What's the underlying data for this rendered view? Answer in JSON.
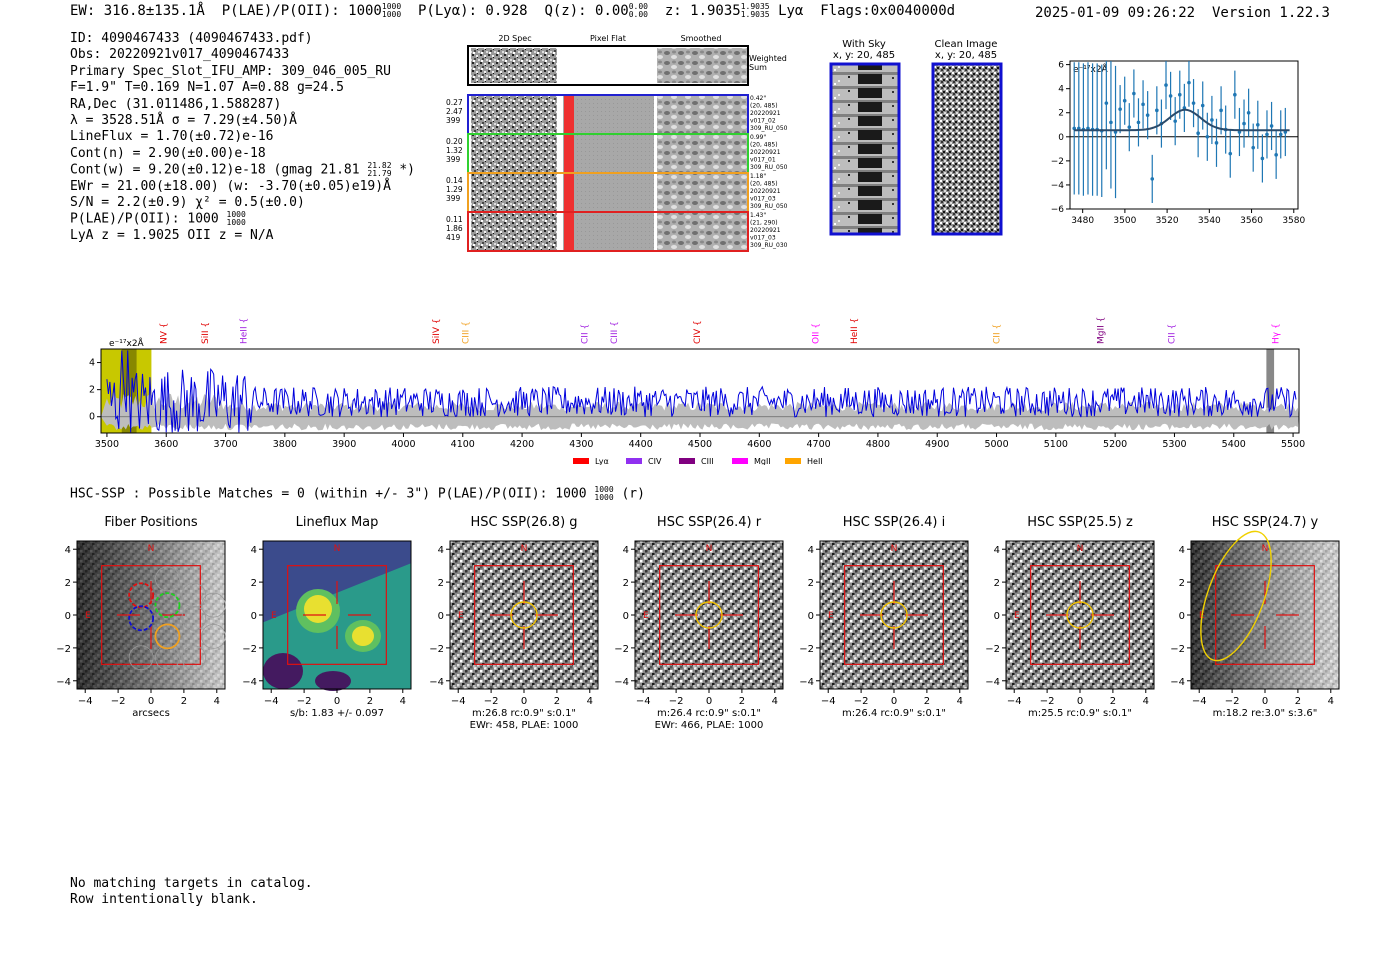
{
  "header": {
    "ew": "EW: 316.8±135.1Å",
    "plae_label": "P(LAE)/P(OII): 1000",
    "plae_hi": "1000",
    "plae_lo": "1000",
    "plya": "P(Lyα): 0.928",
    "qz": "Q(z): 0.00",
    "qz_hi": "0.00",
    "qz_lo": "0.00",
    "z": "z: 1.9035",
    "z_hi": "1.9035",
    "z_lo": "1.9035",
    "line": "Lyα",
    "flags": "Flags:0x0040000d",
    "datetime": "2025-01-09 09:26:22",
    "version": "Version 1.22.3"
  },
  "info": {
    "id": "ID: 4090467433 (4090467433.pdf)",
    "obs": "Obs: 20220921v017_4090467433",
    "primary": "Primary Spec_Slot_IFU_AMP: 309_046_005_RU",
    "params": "F=1.9\"  T=0.169  N=1.07  A=0.88  g=24.5",
    "radec": "RA,Dec (31.011486,1.588287)",
    "lambda": "λ = 3528.51Å   σ = 7.29(±4.50)Å",
    "lineflux": "LineFlux = 1.70(±0.72)e-16",
    "contn": "Cont(n) = 2.90(±0.00)e-18",
    "contw": "Cont(w) = 9.20(±0.12)e-18 (gmag 21.81",
    "contw_hi": "21.82",
    "contw_lo": "21.79",
    "contw_end": "*)",
    "ewr": "EWr = 21.00(±18.00) (w: -3.70(±0.05)e19)Å",
    "sn": "S/N = 2.2(±0.9)  χ² = 0.5(±0.0)",
    "plae": "P(LAE)/P(OII): 1000",
    "plae_hi": "1000",
    "plae_lo": "1000",
    "lyaz": "LyA z = 1.9025  OII z = N/A"
  },
  "cutouts": {
    "col_2d": "2D Spec",
    "col_flat": "Pixel Flat",
    "col_smooth": "Smoothed",
    "weighted": [
      "Weighted",
      "Sum"
    ],
    "rows": [
      {
        "color": "#2020d0",
        "left": [
          "0.27",
          "2.47",
          "399"
        ],
        "right": [
          "0.42\"",
          "(20, 485)",
          "20220921",
          "v017_02",
          "309_RU_050"
        ]
      },
      {
        "color": "#30d030",
        "left": [
          "0.20",
          "1.32",
          "399"
        ],
        "right": [
          "0.99\"",
          "(20, 485)",
          "20220921",
          "v017_01",
          "309_RU_050"
        ]
      },
      {
        "color": "#f0a020",
        "left": [
          "0.14",
          "1.29",
          "399"
        ],
        "right": [
          "1.18\"",
          "(20, 485)",
          "20220921",
          "v017_03",
          "309_RU_050"
        ]
      },
      {
        "color": "#e02020",
        "left": [
          "0.11",
          "1.86",
          "419"
        ],
        "right": [
          "1.43\"",
          "(21, 290)",
          "20220921",
          "v017_03",
          "309_RU_030"
        ]
      }
    ]
  },
  "sky": {
    "title1": "With Sky",
    "title2": "x, y: 20, 485"
  },
  "clean": {
    "title1": "Clean Image",
    "title2": "x, y: 20, 485"
  },
  "small_spec": {
    "units": "e⁻¹⁷x2Å",
    "xticks": [
      "3480",
      "3500",
      "3520",
      "3540",
      "3560",
      "3580"
    ],
    "yticks": [
      "6",
      "4",
      "2",
      "0",
      "−2",
      "−4",
      "−6"
    ],
    "xlim": [
      3474,
      3582
    ],
    "ylim": [
      -6,
      6.3
    ],
    "points_y": [
      0.7,
      0.7,
      0.6,
      0.7,
      0.6,
      0.6,
      0.5,
      2.8,
      1.2,
      0.4,
      2.3,
      3.0,
      0.8,
      3.6,
      1.2,
      2.7,
      1.8,
      -3.5,
      2.2,
      1.1,
      4.3,
      3.4,
      1.3,
      3.5,
      2.4,
      4.5,
      2.8,
      0.3,
      2.6,
      0.0,
      1.4,
      -0.5,
      2.2,
      0.6,
      -1.4,
      3.5,
      0.4,
      1.1,
      2.0,
      -0.9,
      1.0,
      -1.8,
      0.2,
      0.9,
      -1.5,
      0.2,
      0.4
    ],
    "err": 2.0
  },
  "wide_spec": {
    "units": "e⁻¹⁷x2Å",
    "xlim": [
      3490,
      5510
    ],
    "ylim": [
      -1.2,
      5
    ],
    "xticks": [
      "3500",
      "3600",
      "3700",
      "3800",
      "3900",
      "4000",
      "4100",
      "4200",
      "4300",
      "4400",
      "4500",
      "4600",
      "4700",
      "4800",
      "4900",
      "5000",
      "5100",
      "5200",
      "5300",
      "5400",
      "5500"
    ],
    "yticks": [
      "4",
      "2",
      "0"
    ],
    "lines": [
      {
        "label": "NV",
        "x": 3595,
        "color": "#e00000"
      },
      {
        "label": "SiII",
        "x": 3665,
        "color": "#e00000"
      },
      {
        "label": "HeII",
        "x": 3730,
        "color": "#a020e0"
      },
      {
        "label": "SiIV",
        "x": 4055,
        "color": "#e00000"
      },
      {
        "label": "CIII",
        "x": 4105,
        "color": "#f0a020"
      },
      {
        "label": "CII",
        "x": 4305,
        "color": "#a020e0"
      },
      {
        "label": "CIII",
        "x": 4355,
        "color": "#a020e0"
      },
      {
        "label": "CIV",
        "x": 4495,
        "color": "#e00000"
      },
      {
        "label": "OII",
        "x": 4695,
        "color": "#ff00ff"
      },
      {
        "label": "HeII",
        "x": 4760,
        "color": "#e00000"
      },
      {
        "label": "CII",
        "x": 5000,
        "color": "#f0a020"
      },
      {
        "label": "MgII",
        "x": 5175,
        "color": "#800080"
      },
      {
        "label": "CII",
        "x": 5295,
        "color": "#a020e0"
      },
      {
        "label": "Hγ",
        "x": 5470,
        "color": "#ff00ff"
      }
    ],
    "legend": [
      {
        "label": "Lyα",
        "color": "#ff0000"
      },
      {
        "label": "CIV",
        "color": "#9030f0"
      },
      {
        "label": "CIII",
        "color": "#800080"
      },
      {
        "label": "MgII",
        "color": "#ff00ff"
      },
      {
        "label": "HeII",
        "color": "#ffa500"
      }
    ]
  },
  "hsc": {
    "line": "HSC-SSP : Possible Matches = 0 (within +/- 3\")  P(LAE)/P(OII): 1000",
    "line_hi": "1000",
    "line_lo": "1000",
    "line_end": "(r)"
  },
  "panels": [
    {
      "title": "Fiber Positions",
      "cap1": "arcsecs",
      "cap2": ""
    },
    {
      "title": "Lineflux Map",
      "cap1": "s/b: 1.83 +/- 0.097",
      "cap2": ""
    },
    {
      "title": "HSC SSP(26.8) g",
      "cap1": "m:26.8 rc:0.9\"  s:0.1\"",
      "cap2": "EWr: 458, PLAE: 1000"
    },
    {
      "title": "HSC SSP(26.4) r",
      "cap1": "m:26.4 rc:0.9\"  s:0.1\"",
      "cap2": "EWr: 466, PLAE: 1000"
    },
    {
      "title": "HSC SSP(26.4) i",
      "cap1": "m:26.4 rc:0.9\"  s:0.1\"",
      "cap2": ""
    },
    {
      "title": "HSC SSP(25.5) z",
      "cap1": "m:25.5 rc:0.9\"  s:0.1\"",
      "cap2": ""
    },
    {
      "title": "HSC SSP(24.7) y",
      "cap1": "m:18.2  re:3.0\"  s:3.6\"",
      "cap2": ""
    }
  ],
  "panel_axes": {
    "ticks": [
      "4",
      "2",
      "0",
      "−2",
      "−4"
    ],
    "xticks": [
      "−4",
      "−2",
      "0",
      "2",
      "4"
    ],
    "north": "N",
    "east": "E"
  },
  "footer": {
    "line1": "No matching targets in catalog.",
    "line2": "Row intentionally blank."
  }
}
